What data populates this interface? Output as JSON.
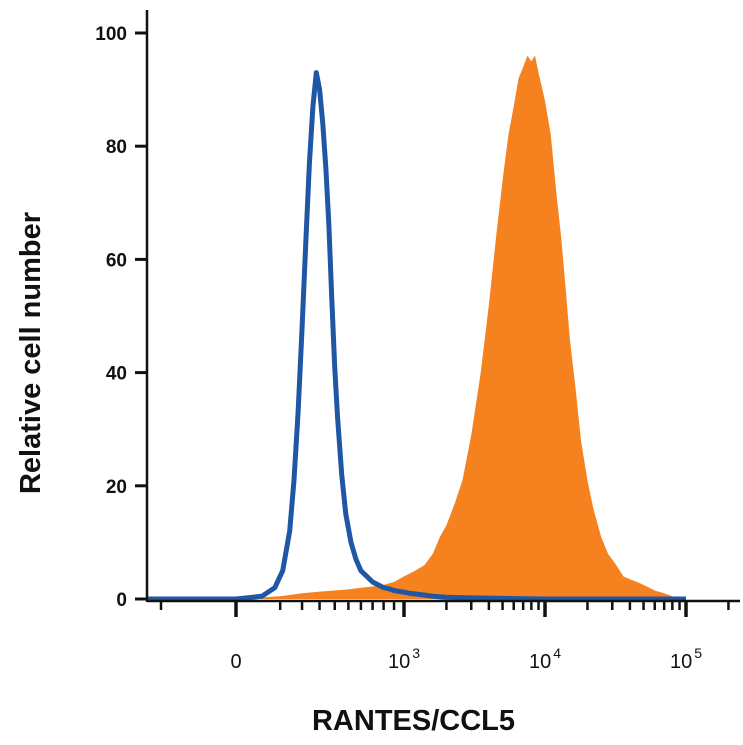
{
  "chart_data": {
    "type": "area",
    "title": "",
    "xlabel": "RANTES/CCL5",
    "ylabel": "Relative cell number",
    "x_scale": "biexponential",
    "ylim": [
      0,
      100
    ],
    "yticks": [
      0,
      20,
      40,
      60,
      80,
      100
    ],
    "xticks": [
      {
        "value": 0,
        "base": "0",
        "exp": ""
      },
      {
        "value": 1000,
        "base": "10",
        "exp": "3"
      },
      {
        "value": 10000,
        "base": "10",
        "exp": "4"
      },
      {
        "value": 100000,
        "base": "10",
        "exp": "5"
      }
    ],
    "grid": false,
    "legend": "none",
    "series": [
      {
        "style": "filled",
        "color": "#F5821F",
        "x": [
          -120,
          0,
          100,
          200,
          300,
          400,
          500,
          600,
          700,
          800,
          900,
          1000,
          1200,
          1400,
          1600,
          1800,
          2000,
          2300,
          2600,
          3000,
          3500,
          4000,
          4500,
          5000,
          5500,
          6000,
          6500,
          7000,
          7500,
          8000,
          8500,
          9000,
          10000,
          11000,
          12000,
          13000,
          14000,
          15000,
          16500,
          18000,
          20000,
          22000,
          25000,
          28000,
          32000,
          36000,
          40000,
          45000,
          50000,
          60000,
          70000,
          80000,
          90000,
          100000
        ],
        "y": [
          0,
          0,
          0.5,
          1,
          1.3,
          1.5,
          1.7,
          2,
          2.2,
          2.5,
          3,
          4,
          5,
          6,
          8,
          11,
          13,
          17,
          21,
          29,
          40,
          52,
          64,
          74,
          82,
          87,
          92,
          94,
          96,
          95,
          96,
          93,
          88,
          82,
          72,
          64,
          55,
          46,
          37,
          28,
          21,
          16,
          11,
          8,
          6,
          4,
          3.5,
          3,
          2.5,
          1.5,
          1,
          0.5,
          0.2,
          0
        ]
      },
      {
        "style": "outline",
        "color": "#1F57A4",
        "x": [
          -120,
          -60,
          0,
          40,
          80,
          110,
          140,
          160,
          180,
          200,
          220,
          240,
          260,
          280,
          300,
          320,
          340,
          360,
          380,
          400,
          420,
          450,
          480,
          520,
          560,
          600,
          650,
          700,
          750,
          800,
          850,
          900,
          1000,
          1100,
          1300,
          1600,
          2000,
          3000,
          5000,
          10000,
          30000,
          100000
        ],
        "y": [
          0,
          0,
          0,
          0.5,
          2,
          5,
          12,
          21,
          33,
          48,
          63,
          77,
          87,
          93,
          90,
          84,
          76,
          66,
          53,
          41,
          32,
          22,
          15,
          10,
          7,
          5,
          4,
          3,
          2.5,
          2,
          1.8,
          1.5,
          1.2,
          1,
          0.8,
          0.5,
          0.3,
          0.2,
          0.1,
          0,
          0,
          0
        ]
      }
    ]
  }
}
